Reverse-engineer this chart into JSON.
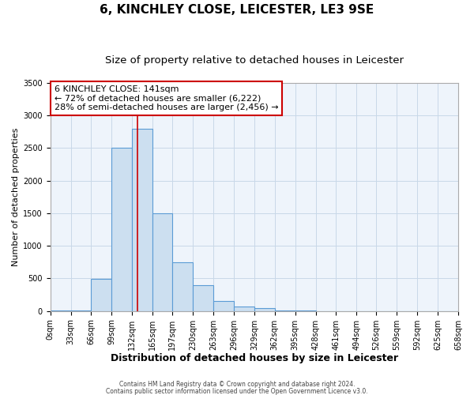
{
  "title": "6, KINCHLEY CLOSE, LEICESTER, LE3 9SE",
  "subtitle": "Size of property relative to detached houses in Leicester",
  "xlabel": "Distribution of detached houses by size in Leicester",
  "ylabel": "Number of detached properties",
  "footnote1": "Contains HM Land Registry data © Crown copyright and database right 2024.",
  "footnote2": "Contains public sector information licensed under the Open Government Licence v3.0.",
  "bin_edges": [
    0,
    33,
    66,
    99,
    132,
    165,
    197,
    230,
    263,
    296,
    329,
    362,
    395,
    428,
    461,
    494,
    526,
    559,
    592,
    625,
    658
  ],
  "bin_heights": [
    5,
    5,
    490,
    2500,
    2800,
    1500,
    750,
    400,
    150,
    75,
    50,
    5,
    5,
    0,
    0,
    0,
    0,
    0,
    0,
    0
  ],
  "bar_facecolor": "#ccdff0",
  "bar_edgecolor": "#5b9bd5",
  "bar_linewidth": 0.8,
  "vline_x": 141,
  "vline_color": "#cc0000",
  "vline_linewidth": 1.2,
  "ylim": [
    0,
    3500
  ],
  "yticks": [
    0,
    500,
    1000,
    1500,
    2000,
    2500,
    3000,
    3500
  ],
  "xtick_labels": [
    "0sqm",
    "33sqm",
    "66sqm",
    "99sqm",
    "132sqm",
    "165sqm",
    "197sqm",
    "230sqm",
    "263sqm",
    "296sqm",
    "329sqm",
    "362sqm",
    "395sqm",
    "428sqm",
    "461sqm",
    "494sqm",
    "526sqm",
    "559sqm",
    "592sqm",
    "625sqm",
    "658sqm"
  ],
  "annotation_text": "6 KINCHLEY CLOSE: 141sqm\n← 72% of detached houses are smaller (6,222)\n28% of semi-detached houses are larger (2,456) →",
  "annotation_box_color": "#ffffff",
  "annotation_border_color": "#cc0000",
  "grid_color": "#c8d8e8",
  "background_color": "#eef4fb",
  "title_fontsize": 11,
  "subtitle_fontsize": 9.5,
  "xlabel_fontsize": 9,
  "ylabel_fontsize": 8,
  "tick_fontsize": 7,
  "annotation_fontsize": 8,
  "footnote_fontsize": 5.5
}
